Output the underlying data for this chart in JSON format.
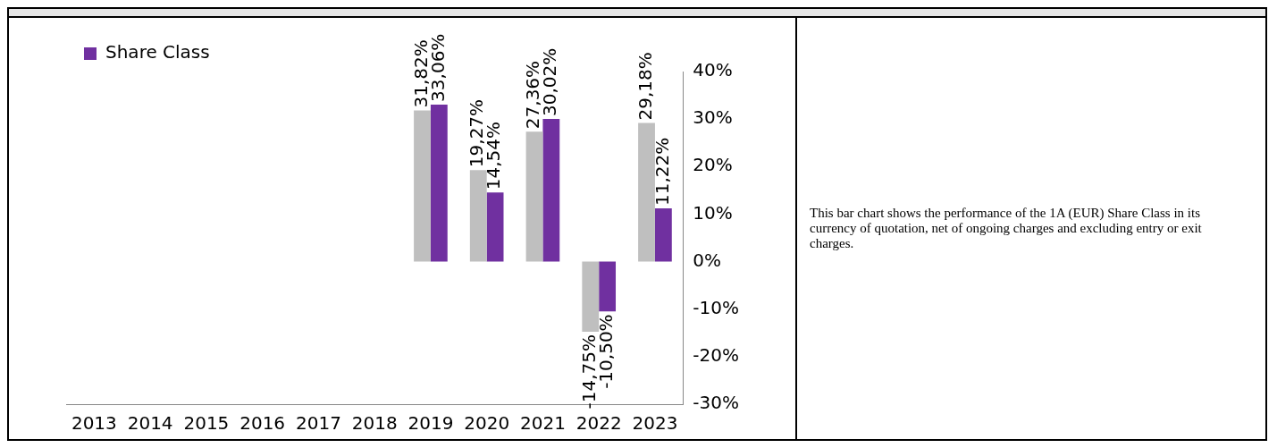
{
  "chart_data": {
    "type": "bar",
    "categories": [
      "2013",
      "2014",
      "2015",
      "2016",
      "2017",
      "2018",
      "2019",
      "2020",
      "2021",
      "2022",
      "2023"
    ],
    "series": [
      {
        "color": "#bfbfbf",
        "values": [
          null,
          null,
          null,
          null,
          null,
          null,
          31.82,
          19.27,
          27.36,
          -14.75,
          29.18
        ],
        "value_labels": [
          null,
          null,
          null,
          null,
          null,
          null,
          "31,82%",
          "19,27%",
          "27,36%",
          "-14,75%",
          "29,18%"
        ]
      },
      {
        "name": "Share Class",
        "color": "#7030a0",
        "values": [
          null,
          null,
          null,
          null,
          null,
          null,
          33.06,
          14.54,
          30.02,
          -10.5,
          11.22
        ],
        "value_labels": [
          null,
          null,
          null,
          null,
          null,
          null,
          "33,06%",
          "14,54%",
          "30,02%",
          "-10,50%",
          "11,22%"
        ]
      }
    ],
    "ylim": [
      -30,
      40
    ],
    "yticks": [
      {
        "value": -30,
        "label": "-30%"
      },
      {
        "value": -20,
        "label": "-20%"
      },
      {
        "value": -10,
        "label": "-10%"
      },
      {
        "value": 0,
        "label": "0%"
      },
      {
        "value": 10,
        "label": "10%"
      },
      {
        "value": 20,
        "label": "20%"
      },
      {
        "value": 30,
        "label": "30%"
      },
      {
        "value": 40,
        "label": "40%"
      }
    ],
    "grid": false,
    "legend": "top left",
    "annotations": [
      "This bar chart shows the performance of the 1A (EUR) Share Class in its currency of quotation, net of ongoing charges and excluding entry or exit charges."
    ]
  }
}
